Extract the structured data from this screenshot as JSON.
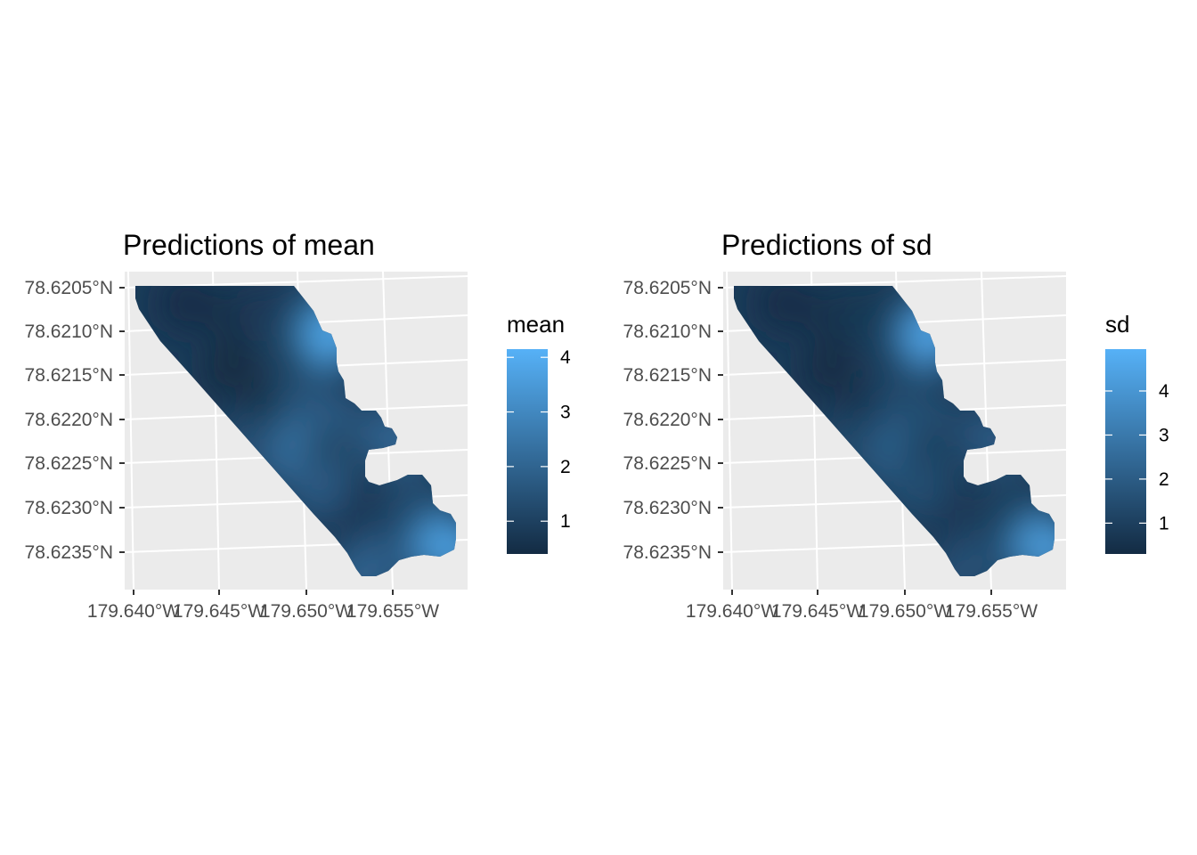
{
  "chart_data": [
    {
      "type": "heatmap",
      "title": "Predictions of mean",
      "xlabel": "",
      "ylabel": "",
      "x_ticks": [
        "179.640°W",
        "179.645°W",
        "179.650°W",
        "179.655°W"
      ],
      "y_ticks": [
        "78.6205°N",
        "78.6210°N",
        "78.6215°N",
        "78.6220°N",
        "78.6225°N",
        "78.6230°N",
        "78.6235°N"
      ],
      "xlim": [
        179.6395,
        179.6588
      ],
      "ylim": [
        78.6238,
        78.62035
      ],
      "grid": true,
      "legend": {
        "title": "mean",
        "placement": "right",
        "breaks": [
          1,
          2,
          3,
          4
        ],
        "labels": [
          "1",
          "2",
          "3",
          "4"
        ],
        "range": [
          0.4,
          4.15
        ],
        "low_color": "#132B43",
        "high_color": "#56B1F7"
      },
      "field": {
        "points": [
          {
            "x": 179.646,
            "y": 78.62085,
            "value": 0.55
          },
          {
            "x": 179.643,
            "y": 78.6207,
            "value": 0.5
          },
          {
            "x": 179.6455,
            "y": 78.6214,
            "value": 0.45
          },
          {
            "x": 179.648,
            "y": 78.6219,
            "value": 0.55
          },
          {
            "x": 179.6475,
            "y": 78.6208,
            "value": 0.8
          },
          {
            "x": 179.6492,
            "y": 78.6211,
            "value": 1.2
          },
          {
            "x": 179.6505,
            "y": 78.6208,
            "value": 1.6
          },
          {
            "x": 179.6512,
            "y": 78.62105,
            "value": 3.7
          },
          {
            "x": 179.6498,
            "y": 78.62175,
            "value": 1.5
          },
          {
            "x": 179.651,
            "y": 78.62195,
            "value": 1.7
          },
          {
            "x": 179.6538,
            "y": 78.62205,
            "value": 1.4
          },
          {
            "x": 179.6549,
            "y": 78.6222,
            "value": 2.0
          },
          {
            "x": 179.6488,
            "y": 78.6223,
            "value": 2.4
          },
          {
            "x": 179.6465,
            "y": 78.62225,
            "value": 1.4
          },
          {
            "x": 179.651,
            "y": 78.6224,
            "value": 1.2
          },
          {
            "x": 179.6505,
            "y": 78.6227,
            "value": 1.7
          },
          {
            "x": 179.653,
            "y": 78.623,
            "value": 0.8
          },
          {
            "x": 179.655,
            "y": 78.6231,
            "value": 1.0
          },
          {
            "x": 179.656,
            "y": 78.62285,
            "value": 1.3
          },
          {
            "x": 179.6572,
            "y": 78.6233,
            "value": 2.6
          },
          {
            "x": 179.6578,
            "y": 78.62335,
            "value": 3.5
          },
          {
            "x": 179.6541,
            "y": 78.6235,
            "value": 1.7
          },
          {
            "x": 179.6527,
            "y": 78.62365,
            "value": 1.9
          }
        ]
      }
    },
    {
      "type": "heatmap",
      "title": "Predictions of sd",
      "xlabel": "",
      "ylabel": "",
      "x_ticks": [
        "179.640°W",
        "179.645°W",
        "179.650°W",
        "179.655°W"
      ],
      "y_ticks": [
        "78.6205°N",
        "78.6210°N",
        "78.6215°N",
        "78.6220°N",
        "78.6225°N",
        "78.6230°N",
        "78.6235°N"
      ],
      "xlim": [
        179.6395,
        179.6588
      ],
      "ylim": [
        78.6238,
        78.62035
      ],
      "grid": true,
      "legend": {
        "title": "sd",
        "placement": "right",
        "breaks": [
          1,
          2,
          3,
          4
        ],
        "labels": [
          "1",
          "2",
          "3",
          "4"
        ],
        "range": [
          0.3,
          4.95
        ],
        "low_color": "#132B43",
        "high_color": "#56B1F7"
      },
      "field": {
        "points": [
          {
            "x": 179.646,
            "y": 78.62085,
            "value": 0.5
          },
          {
            "x": 179.643,
            "y": 78.6207,
            "value": 0.45
          },
          {
            "x": 179.6455,
            "y": 78.6214,
            "value": 0.4
          },
          {
            "x": 179.648,
            "y": 78.6219,
            "value": 0.55
          },
          {
            "x": 179.6475,
            "y": 78.6208,
            "value": 0.7
          },
          {
            "x": 179.6492,
            "y": 78.6211,
            "value": 1.1
          },
          {
            "x": 179.6505,
            "y": 78.6208,
            "value": 1.3
          },
          {
            "x": 179.6512,
            "y": 78.62105,
            "value": 4.3
          },
          {
            "x": 179.6498,
            "y": 78.62175,
            "value": 1.4
          },
          {
            "x": 179.651,
            "y": 78.62195,
            "value": 1.5
          },
          {
            "x": 179.6538,
            "y": 78.62205,
            "value": 1.2
          },
          {
            "x": 179.6549,
            "y": 78.6222,
            "value": 1.9
          },
          {
            "x": 179.6488,
            "y": 78.6223,
            "value": 2.2
          },
          {
            "x": 179.6465,
            "y": 78.62225,
            "value": 1.3
          },
          {
            "x": 179.651,
            "y": 78.6224,
            "value": 1.1
          },
          {
            "x": 179.6505,
            "y": 78.6227,
            "value": 1.5
          },
          {
            "x": 179.653,
            "y": 78.623,
            "value": 0.8
          },
          {
            "x": 179.655,
            "y": 78.6231,
            "value": 0.9
          },
          {
            "x": 179.656,
            "y": 78.62285,
            "value": 1.1
          },
          {
            "x": 179.6572,
            "y": 78.6233,
            "value": 2.9
          },
          {
            "x": 179.6578,
            "y": 78.62335,
            "value": 4.0
          },
          {
            "x": 179.6541,
            "y": 78.6235,
            "value": 1.5
          },
          {
            "x": 179.6527,
            "y": 78.62365,
            "value": 1.6
          }
        ]
      }
    }
  ]
}
